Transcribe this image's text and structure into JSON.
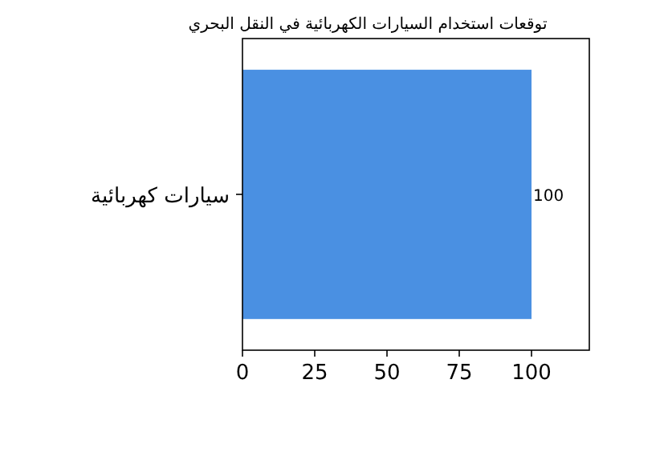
{
  "chart_data": {
    "type": "bar",
    "orientation": "horizontal",
    "title": "توقعات استخدام السيارات الكهربائية في النقل البحري",
    "categories": [
      "سيارات كهربائية"
    ],
    "values": [
      100
    ],
    "color": "#4a90e2",
    "xlim": [
      0,
      120
    ],
    "xticks": [
      0,
      25,
      50,
      75,
      100
    ],
    "data_labels": true
  }
}
